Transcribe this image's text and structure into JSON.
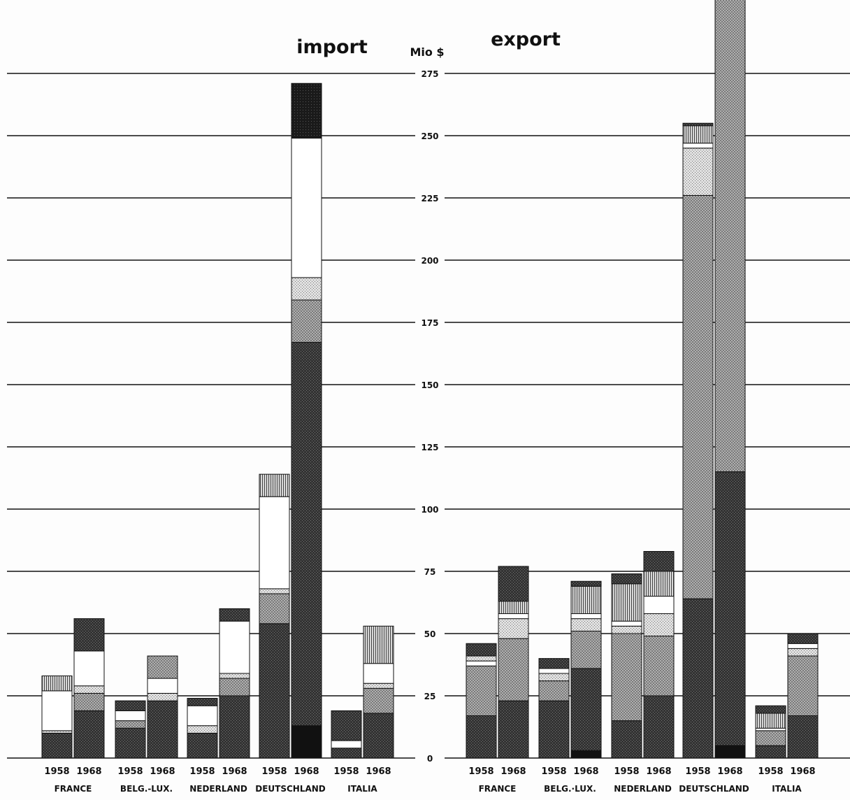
{
  "unit_label": "Mio $",
  "colors": {
    "black": "#111111",
    "darkest": "#1c1c1c",
    "dark": "#3a3a3a",
    "dark_medium": "#555555",
    "medium": "#8a8a8a",
    "light": "#c2c2c2",
    "white": "#ffffff",
    "grid": "#111111"
  },
  "chart_data": [
    {
      "type": "bar",
      "stacked": true,
      "title": "import",
      "ylabel": "Mio $",
      "ylim": [
        0,
        275
      ],
      "yticks": [
        0,
        25,
        50,
        75,
        100,
        125,
        150,
        175,
        200,
        225,
        250,
        275
      ],
      "grid": true,
      "groups": [
        "FRANCE",
        "BELG.-LUX.",
        "NEDERLAND",
        "DEUTSCHLAND",
        "ITALIA"
      ],
      "years": [
        "1958",
        "1968"
      ],
      "bars": [
        {
          "group": "FRANCE",
          "year": "1958",
          "segments": [
            {
              "value": 10,
              "color": "dark"
            },
            {
              "value": 1,
              "color": "light"
            },
            {
              "value": 16,
              "color": "white"
            },
            {
              "value": 6,
              "color": "dark_medium"
            }
          ]
        },
        {
          "group": "FRANCE",
          "year": "1968",
          "segments": [
            {
              "value": 19,
              "color": "dark"
            },
            {
              "value": 7,
              "color": "medium"
            },
            {
              "value": 3,
              "color": "light"
            },
            {
              "value": 14,
              "color": "white"
            },
            {
              "value": 13,
              "color": "dark"
            }
          ]
        },
        {
          "group": "BELG.-LUX.",
          "year": "1958",
          "segments": [
            {
              "value": 12,
              "color": "dark"
            },
            {
              "value": 3,
              "color": "medium"
            },
            {
              "value": 4,
              "color": "white"
            },
            {
              "value": 4,
              "color": "dark"
            }
          ]
        },
        {
          "group": "BELG.-LUX.",
          "year": "1968",
          "segments": [
            {
              "value": 23,
              "color": "dark"
            },
            {
              "value": 3,
              "color": "light"
            },
            {
              "value": 6,
              "color": "white"
            },
            {
              "value": 9,
              "color": "medium"
            }
          ]
        },
        {
          "group": "NEDERLAND",
          "year": "1958",
          "segments": [
            {
              "value": 10,
              "color": "dark"
            },
            {
              "value": 3,
              "color": "light"
            },
            {
              "value": 8,
              "color": "white"
            },
            {
              "value": 3,
              "color": "dark"
            }
          ]
        },
        {
          "group": "NEDERLAND",
          "year": "1968",
          "segments": [
            {
              "value": 25,
              "color": "dark"
            },
            {
              "value": 7,
              "color": "medium"
            },
            {
              "value": 2,
              "color": "light"
            },
            {
              "value": 21,
              "color": "white"
            },
            {
              "value": 5,
              "color": "dark"
            }
          ]
        },
        {
          "group": "DEUTSCHLAND",
          "year": "1958",
          "segments": [
            {
              "value": 54,
              "color": "dark"
            },
            {
              "value": 12,
              "color": "medium"
            },
            {
              "value": 2,
              "color": "light"
            },
            {
              "value": 37,
              "color": "white"
            },
            {
              "value": 9,
              "color": "dark_medium"
            }
          ]
        },
        {
          "group": "DEUTSCHLAND",
          "year": "1968",
          "segments": [
            {
              "value": 13,
              "color": "black"
            },
            {
              "value": 154,
              "color": "dark"
            },
            {
              "value": 17,
              "color": "medium"
            },
            {
              "value": 9,
              "color": "light"
            },
            {
              "value": 56,
              "color": "white"
            },
            {
              "value": 22,
              "color": "darkest"
            }
          ]
        },
        {
          "group": "ITALIA",
          "year": "1958",
          "segments": [
            {
              "value": 4,
              "color": "dark"
            },
            {
              "value": 3,
              "color": "white"
            },
            {
              "value": 12,
              "color": "dark"
            }
          ]
        },
        {
          "group": "ITALIA",
          "year": "1968",
          "segments": [
            {
              "value": 18,
              "color": "dark"
            },
            {
              "value": 10,
              "color": "medium"
            },
            {
              "value": 2,
              "color": "light"
            },
            {
              "value": 8,
              "color": "white"
            },
            {
              "value": 15,
              "color": "dark_medium"
            }
          ]
        }
      ]
    },
    {
      "type": "bar",
      "stacked": true,
      "title": "export",
      "ylabel": "Mio $",
      "ylim": [
        0,
        275
      ],
      "yticks": [
        0,
        25,
        50,
        75,
        100,
        125,
        150,
        175,
        200,
        225,
        250,
        275
      ],
      "grid": true,
      "groups": [
        "FRANCE",
        "BELG.·LUX.",
        "NEDERLAND",
        "DEUTSCHLAND",
        "ITALIA"
      ],
      "years": [
        "1958",
        "1968"
      ],
      "bars": [
        {
          "group": "FRANCE",
          "year": "1958",
          "segments": [
            {
              "value": 17,
              "color": "dark"
            },
            {
              "value": 20,
              "color": "medium"
            },
            {
              "value": 2,
              "color": "white"
            },
            {
              "value": 2,
              "color": "light"
            },
            {
              "value": 5,
              "color": "dark"
            }
          ]
        },
        {
          "group": "FRANCE",
          "year": "1968",
          "segments": [
            {
              "value": 23,
              "color": "dark"
            },
            {
              "value": 25,
              "color": "medium"
            },
            {
              "value": 8,
              "color": "light"
            },
            {
              "value": 2,
              "color": "white"
            },
            {
              "value": 5,
              "color": "dark_medium"
            },
            {
              "value": 14,
              "color": "dark"
            }
          ]
        },
        {
          "group": "BELG.·LUX.",
          "year": "1958",
          "segments": [
            {
              "value": 23,
              "color": "dark"
            },
            {
              "value": 8,
              "color": "medium"
            },
            {
              "value": 3,
              "color": "light"
            },
            {
              "value": 2,
              "color": "white"
            },
            {
              "value": 4,
              "color": "dark"
            }
          ]
        },
        {
          "group": "BELG.·LUX.",
          "year": "1968",
          "segments": [
            {
              "value": 3,
              "color": "black"
            },
            {
              "value": 33,
              "color": "dark"
            },
            {
              "value": 15,
              "color": "medium"
            },
            {
              "value": 5,
              "color": "light"
            },
            {
              "value": 2,
              "color": "white"
            },
            {
              "value": 11,
              "color": "dark_medium"
            },
            {
              "value": 2,
              "color": "dark"
            }
          ]
        },
        {
          "group": "NEDERLAND",
          "year": "1958",
          "segments": [
            {
              "value": 15,
              "color": "dark"
            },
            {
              "value": 35,
              "color": "medium"
            },
            {
              "value": 3,
              "color": "light"
            },
            {
              "value": 2,
              "color": "white"
            },
            {
              "value": 15,
              "color": "dark_medium"
            },
            {
              "value": 4,
              "color": "dark"
            }
          ]
        },
        {
          "group": "NEDERLAND",
          "year": "1968",
          "segments": [
            {
              "value": 25,
              "color": "dark"
            },
            {
              "value": 24,
              "color": "medium"
            },
            {
              "value": 9,
              "color": "light"
            },
            {
              "value": 7,
              "color": "white"
            },
            {
              "value": 10,
              "color": "dark_medium"
            },
            {
              "value": 8,
              "color": "dark"
            }
          ]
        },
        {
          "group": "DEUTSCHLAND",
          "year": "1958",
          "segments": [
            {
              "value": 64,
              "color": "dark"
            },
            {
              "value": 162,
              "color": "medium"
            },
            {
              "value": 19,
              "color": "light"
            },
            {
              "value": 2,
              "color": "white"
            },
            {
              "value": 7,
              "color": "dark_medium"
            },
            {
              "value": 1,
              "color": "dark"
            }
          ]
        },
        {
          "group": "DEUTSCHLAND",
          "year": "1968",
          "segments": [
            {
              "value": 5,
              "color": "black"
            },
            {
              "value": 110,
              "color": "dark"
            },
            {
              "value": 190,
              "color": "medium"
            }
          ]
        },
        {
          "group": "ITALIA",
          "year": "1958",
          "segments": [
            {
              "value": 5,
              "color": "dark"
            },
            {
              "value": 6,
              "color": "medium"
            },
            {
              "value": 1,
              "color": "white"
            },
            {
              "value": 6,
              "color": "dark_medium"
            },
            {
              "value": 3,
              "color": "dark"
            }
          ]
        },
        {
          "group": "ITALIA",
          "year": "1968",
          "segments": [
            {
              "value": 17,
              "color": "dark"
            },
            {
              "value": 24,
              "color": "medium"
            },
            {
              "value": 3,
              "color": "light"
            },
            {
              "value": 2,
              "color": "white"
            },
            {
              "value": 4,
              "color": "dark"
            }
          ]
        }
      ]
    }
  ]
}
